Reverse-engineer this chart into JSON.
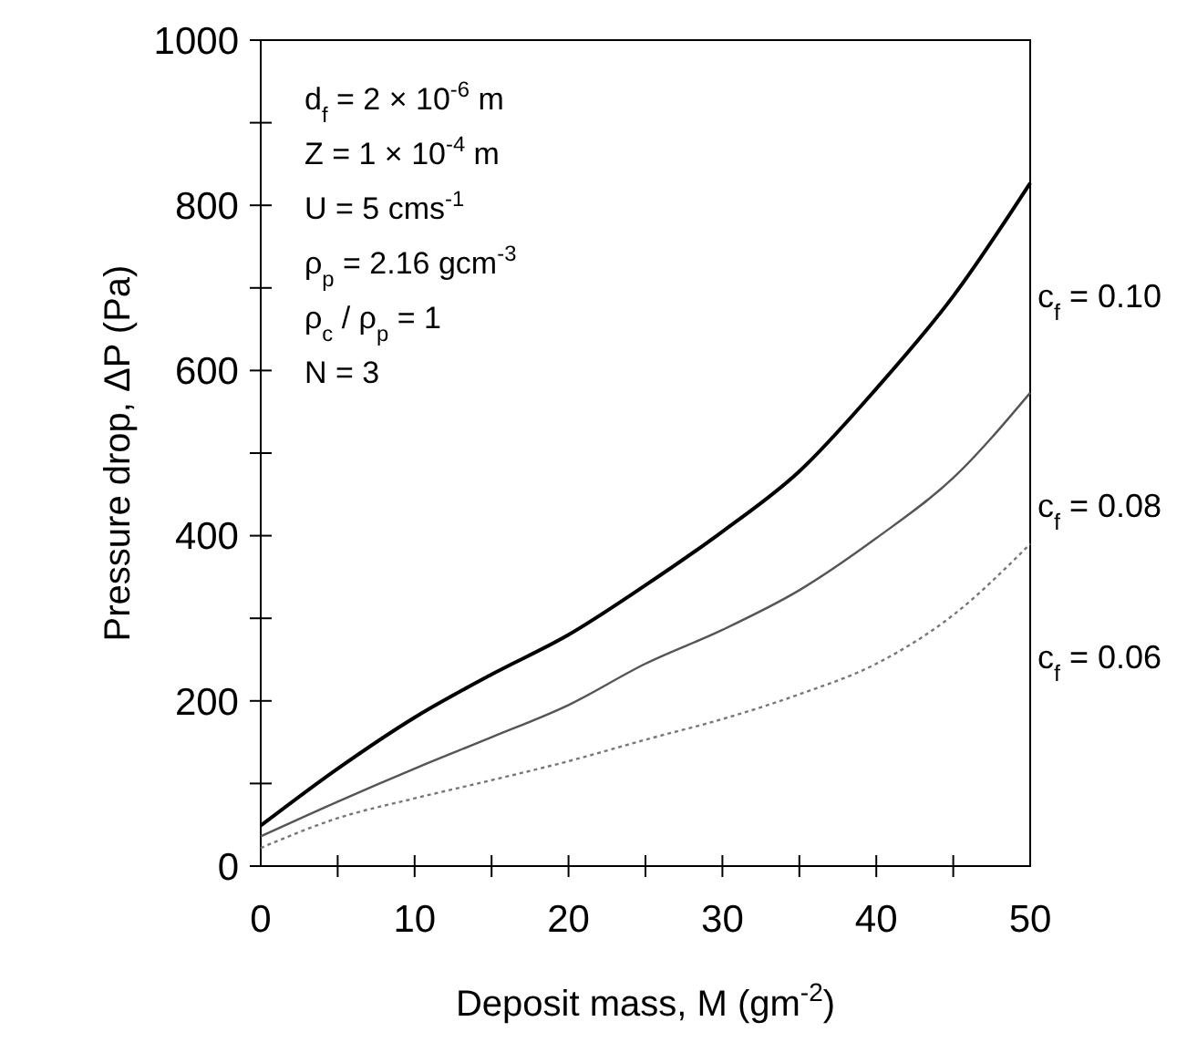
{
  "chart_data": {
    "type": "line",
    "xlabel": "Deposit mass, M (gm$^{-2}$)",
    "ylabel": "Pressure drop, ΔP (Pa)",
    "x": [
      0,
      5,
      10,
      15,
      20,
      25,
      30,
      35,
      40,
      45,
      50
    ],
    "xlim": [
      0,
      50
    ],
    "xticks": [
      0,
      {
        "value": 5,
        "label": null
      },
      10,
      {
        "value": 15,
        "label": null
      },
      20,
      {
        "value": 25,
        "label": null
      },
      30,
      {
        "value": 35,
        "label": null
      },
      40,
      {
        "value": 45,
        "label": null
      },
      50
    ],
    "ylim": [
      0,
      1000
    ],
    "yticks": [
      0,
      {
        "value": 100,
        "label": null
      },
      200,
      {
        "value": 300,
        "label": null
      },
      400,
      {
        "value": 500,
        "label": null
      },
      600,
      {
        "value": 700,
        "label": null
      },
      800,
      {
        "value": 900,
        "label": null
      },
      1000
    ],
    "grid": false,
    "marker": "none",
    "series": [
      {
        "name": "c$_{f}$ = 0.10",
        "color": "#000000",
        "line_style": "solid",
        "values": [
          49,
          118,
          180,
          232,
          280,
          340,
          405,
          478,
          578,
          690,
          827
        ]
      },
      {
        "name": "c$_{f}$ = 0.08",
        "color": "#555555",
        "line_style": "solid",
        "values": [
          36,
          78,
          118,
          156,
          195,
          245,
          286,
          334,
          397,
          470,
          573
        ]
      },
      {
        "name": "c$_{f}$ = 0.06",
        "color": "#777777",
        "line_style": "dotted",
        "values": [
          22,
          58,
          82,
          104,
          127,
          153,
          178,
          208,
          245,
          304,
          390
        ]
      }
    ],
    "annotations": [
      "d$_{f}$ = 2 × 10$^{-6}$ m",
      "Z = 1 × 10$^{-4}$ m",
      "U = 5 cms$^{-1}$",
      "ρ$_{p}$ = 2.16 gcm$^{-3}$",
      "ρ$_{c}$ / ρ$_{p}$ = 1",
      "N = 3"
    ]
  }
}
